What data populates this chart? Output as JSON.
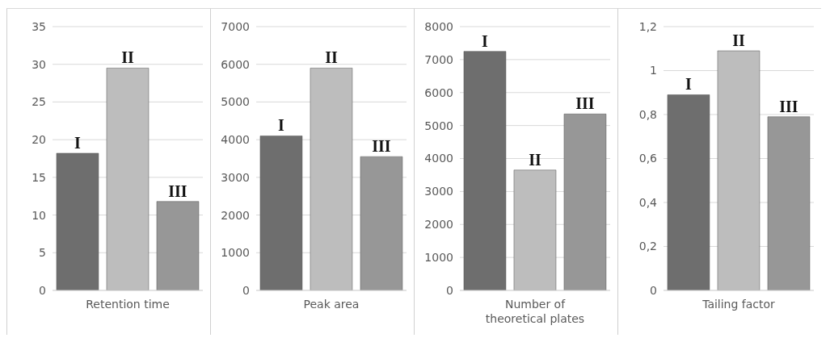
{
  "chart_data": [
    {
      "type": "bar",
      "categories": [
        "I",
        "II",
        "III"
      ],
      "xlabel": "Retention time",
      "values": [
        18.2,
        29.5,
        11.8
      ],
      "colors": [
        "#6e6e6e",
        "#bdbdbd",
        "#979797"
      ],
      "ylim": [
        0,
        35
      ],
      "yticks": [
        0,
        5,
        10,
        15,
        20,
        25,
        30,
        35
      ],
      "grid": "y"
    },
    {
      "type": "bar",
      "categories": [
        "I",
        "II",
        "III"
      ],
      "xlabel": "Peak area",
      "values": [
        4100,
        5900,
        3550
      ],
      "colors": [
        "#6e6e6e",
        "#bdbdbd",
        "#979797"
      ],
      "ylim": [
        0,
        7000
      ],
      "yticks": [
        0,
        1000,
        2000,
        3000,
        4000,
        5000,
        6000,
        7000
      ],
      "grid": "y"
    },
    {
      "type": "bar",
      "categories": [
        "I",
        "II",
        "III"
      ],
      "xlabel": "Number of theoretical plates",
      "values": [
        7250,
        3650,
        5350
      ],
      "colors": [
        "#6e6e6e",
        "#bdbdbd",
        "#979797"
      ],
      "ylim": [
        0,
        8000
      ],
      "yticks": [
        0,
        1000,
        2000,
        3000,
        4000,
        5000,
        6000,
        7000,
        8000
      ],
      "grid": "y"
    },
    {
      "type": "bar",
      "categories": [
        "I",
        "II",
        "III"
      ],
      "xlabel": "Tailing factor",
      "values": [
        0.89,
        1.09,
        0.79
      ],
      "colors": [
        "#6e6e6e",
        "#bdbdbd",
        "#979797"
      ],
      "ylim": [
        0,
        1.2
      ],
      "yticks": [
        0,
        {
          "value": 0.2,
          "label": "0,2"
        },
        {
          "value": 0.4,
          "label": "0,4"
        },
        {
          "value": 0.6,
          "label": "0,6"
        },
        {
          "value": 0.8,
          "label": "0,8"
        },
        1,
        {
          "value": 1.2,
          "label": "1,2"
        }
      ],
      "grid": "y"
    }
  ]
}
